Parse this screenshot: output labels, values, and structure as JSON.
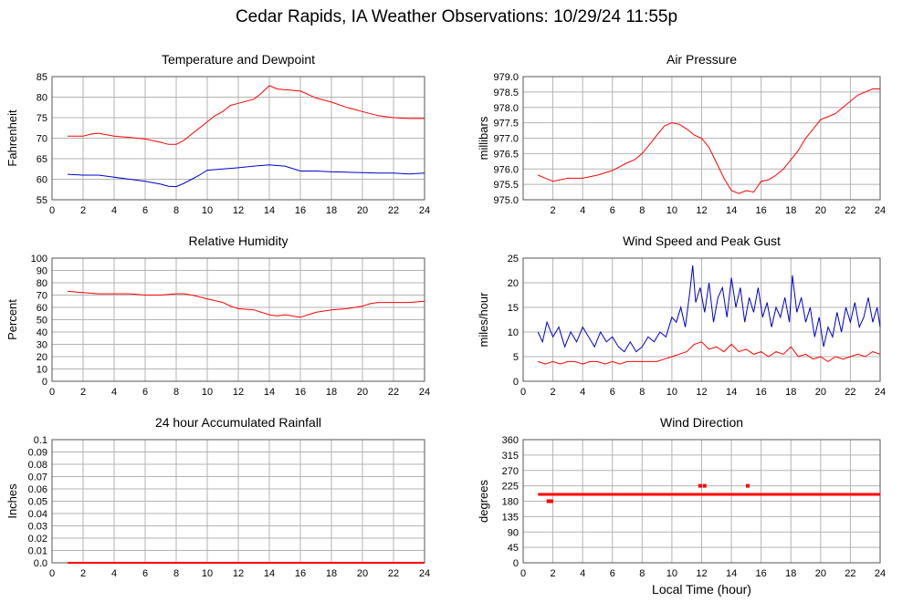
{
  "page": {
    "title": "Cedar Rapids, IA Weather Observations: 10/29/24 11:55p"
  },
  "colors": {
    "primary_series": "#ff0000",
    "secondary_series": "#0000cc",
    "grid": "#b3b3b3",
    "frame": "#555555"
  },
  "chart_data": [
    {
      "id": "temp",
      "type": "line",
      "title": "Temperature and Dewpoint",
      "ylabel": "Fahrenheit",
      "xlabel": "",
      "xlim": [
        0,
        24
      ],
      "ylim": [
        55,
        85
      ],
      "xticks": [
        0,
        2,
        4,
        6,
        8,
        10,
        12,
        14,
        16,
        18,
        20,
        22,
        24
      ],
      "yticks": [
        55,
        60,
        65,
        70,
        75,
        80,
        85
      ],
      "ytick_labels": [
        "55",
        "60",
        "65",
        "70",
        "75",
        "80",
        "85"
      ],
      "grid": true,
      "series": [
        {
          "color": "#ff0000",
          "x": [
            1,
            1.5,
            2,
            2.5,
            3,
            4,
            5,
            6,
            7,
            7.5,
            8,
            8.5,
            9,
            9.5,
            10,
            10.5,
            11,
            11.5,
            12,
            13,
            13.5,
            14,
            14.5,
            15,
            16,
            17,
            18,
            19,
            20,
            21,
            22,
            23,
            24
          ],
          "y": [
            70.5,
            70.5,
            70.5,
            71,
            71.2,
            70.5,
            70.2,
            69.8,
            69,
            68.5,
            68.5,
            69.5,
            71,
            72.5,
            74,
            75.5,
            76.5,
            78,
            78.5,
            79.5,
            81,
            82.8,
            82,
            81.8,
            81.5,
            79.8,
            78.8,
            77.5,
            76.5,
            75.5,
            75,
            74.8,
            74.8
          ]
        },
        {
          "color": "#0000cc",
          "x": [
            1,
            2,
            3,
            4,
            5,
            6,
            7,
            7.5,
            8,
            8.5,
            9,
            9.5,
            10,
            11,
            12,
            13,
            14,
            15,
            16,
            17,
            18,
            19,
            20,
            21,
            22,
            23,
            24
          ],
          "y": [
            61.2,
            61,
            61,
            60.5,
            60,
            59.5,
            58.8,
            58.3,
            58.2,
            59,
            60,
            61,
            62.2,
            62.5,
            62.8,
            63.2,
            63.5,
            63.2,
            62,
            62,
            61.8,
            61.7,
            61.6,
            61.5,
            61.5,
            61.3,
            61.5
          ]
        }
      ]
    },
    {
      "id": "pressure",
      "type": "line",
      "title": "Air Pressure",
      "ylabel": "millibars",
      "xlabel": "",
      "xlim": [
        0,
        24
      ],
      "ylim": [
        975,
        979
      ],
      "xticks": [
        2,
        4,
        6,
        8,
        10,
        12,
        14,
        16,
        18,
        20,
        22,
        24
      ],
      "yticks": [
        975,
        975.5,
        976,
        976.5,
        977,
        977.5,
        978,
        978.5,
        979
      ],
      "ytick_labels": [
        "975.0",
        "975.5",
        "976.0",
        "976.5",
        "977.0",
        "977.5",
        "978.0",
        "978.5",
        "979.0"
      ],
      "grid": true,
      "series": [
        {
          "color": "#ff0000",
          "x": [
            1,
            1.5,
            2,
            3,
            4,
            5,
            6,
            7,
            7.5,
            8,
            8.5,
            9,
            9.5,
            10,
            10.5,
            11,
            11.5,
            12,
            12.5,
            13,
            13.5,
            14,
            14.5,
            15,
            15.5,
            16,
            16.5,
            17,
            17.5,
            18,
            18.5,
            19,
            19.5,
            20,
            20.5,
            21,
            21.5,
            22,
            22.5,
            23,
            23.5,
            24
          ],
          "y": [
            975.8,
            975.7,
            975.6,
            975.7,
            975.7,
            975.8,
            975.95,
            976.2,
            976.3,
            976.5,
            976.8,
            977.1,
            977.4,
            977.5,
            977.45,
            977.3,
            977.1,
            977,
            976.7,
            976.2,
            975.7,
            975.3,
            975.2,
            975.3,
            975.25,
            975.6,
            975.65,
            975.8,
            976,
            976.3,
            976.6,
            977,
            977.3,
            977.6,
            977.7,
            977.8,
            978,
            978.2,
            978.4,
            978.5,
            978.6,
            978.6
          ]
        }
      ]
    },
    {
      "id": "humidity",
      "type": "line",
      "title": "Relative Humidity",
      "ylabel": "Percent",
      "xlabel": "",
      "xlim": [
        0,
        24
      ],
      "ylim": [
        0,
        100
      ],
      "xticks": [
        0,
        2,
        4,
        6,
        8,
        10,
        12,
        14,
        16,
        18,
        20,
        22,
        24
      ],
      "yticks": [
        0,
        10,
        20,
        30,
        40,
        50,
        60,
        70,
        80,
        90,
        100
      ],
      "ytick_labels": [
        "0",
        "10",
        "20",
        "30",
        "40",
        "50",
        "60",
        "70",
        "80",
        "90",
        "100"
      ],
      "grid": true,
      "series": [
        {
          "color": "#ff0000",
          "x": [
            1,
            2,
            3,
            4,
            5,
            6,
            7,
            8,
            8.5,
            9,
            10,
            11,
            11.5,
            12,
            13,
            14,
            14.5,
            15,
            16,
            16.5,
            17,
            18,
            19,
            20,
            20.5,
            21,
            22,
            23,
            24
          ],
          "y": [
            73,
            72,
            71,
            71,
            71,
            70,
            70,
            71,
            71,
            70,
            67,
            64,
            61,
            59,
            58,
            54,
            53,
            54,
            52,
            54,
            56,
            58,
            59,
            61,
            63,
            64,
            64,
            64,
            65
          ]
        }
      ]
    },
    {
      "id": "wind",
      "type": "line",
      "title": "Wind Speed and Peak Gust",
      "ylabel": "miles/hour",
      "xlabel": "",
      "xlim": [
        0,
        24
      ],
      "ylim": [
        0,
        25
      ],
      "xticks": [
        0,
        2,
        4,
        6,
        8,
        10,
        12,
        14,
        16,
        18,
        20,
        22,
        24
      ],
      "yticks": [
        0,
        5,
        10,
        15,
        20,
        25
      ],
      "ytick_labels": [
        "0",
        "5",
        "10",
        "15",
        "20",
        "25"
      ],
      "grid": true,
      "series": [
        {
          "color": "#0000cc",
          "x": [
            1,
            1.3,
            1.6,
            2,
            2.4,
            2.8,
            3.2,
            3.6,
            4,
            4.4,
            4.8,
            5.2,
            5.6,
            6,
            6.4,
            6.8,
            7.2,
            7.6,
            8,
            8.4,
            8.8,
            9.2,
            9.6,
            10,
            10.3,
            10.6,
            10.9,
            11.2,
            11.4,
            11.6,
            11.9,
            12.2,
            12.5,
            12.8,
            13.1,
            13.4,
            13.7,
            14,
            14.3,
            14.6,
            14.9,
            15.2,
            15.5,
            15.8,
            16.1,
            16.4,
            16.7,
            17,
            17.3,
            17.6,
            17.9,
            18.1,
            18.4,
            18.7,
            19,
            19.3,
            19.6,
            19.9,
            20.2,
            20.5,
            20.8,
            21.1,
            21.4,
            21.7,
            22,
            22.3,
            22.6,
            22.9,
            23.2,
            23.5,
            23.8,
            24
          ],
          "y": [
            10,
            8,
            12,
            9,
            11,
            7,
            10,
            8,
            11,
            9,
            7,
            10,
            8,
            9,
            7,
            6,
            8,
            6,
            7,
            9,
            8,
            10,
            9,
            13,
            12,
            15,
            11,
            18,
            23.5,
            16,
            19,
            14,
            20,
            12,
            17,
            19,
            13,
            21,
            15,
            19,
            12,
            17,
            14,
            19,
            13,
            16,
            11,
            15,
            13,
            17,
            12,
            21.5,
            14,
            17,
            12,
            15,
            9,
            13,
            7,
            11,
            9,
            14,
            10,
            15,
            12,
            16,
            11,
            13,
            17,
            12,
            15,
            11
          ]
        },
        {
          "color": "#ff0000",
          "x": [
            1,
            1.5,
            2,
            2.5,
            3,
            3.5,
            4,
            4.5,
            5,
            5.5,
            6,
            6.5,
            7,
            7.5,
            8,
            8.5,
            9,
            9.5,
            10,
            10.5,
            11,
            11.5,
            12,
            12.5,
            13,
            13.5,
            14,
            14.5,
            15,
            15.5,
            16,
            16.5,
            17,
            17.5,
            18,
            18.5,
            19,
            19.5,
            20,
            20.5,
            21,
            21.5,
            22,
            22.5,
            23,
            23.5,
            24
          ],
          "y": [
            4,
            3.5,
            4,
            3.5,
            4,
            4,
            3.5,
            4,
            4,
            3.5,
            4,
            3.5,
            4,
            4,
            4,
            4,
            4,
            4.5,
            5,
            5.5,
            6,
            7.5,
            8,
            6.5,
            7,
            6,
            7.5,
            6,
            6.5,
            5.5,
            6,
            5,
            6,
            5.5,
            7,
            5,
            5.5,
            4.5,
            5,
            4,
            5,
            4.5,
            5,
            5.5,
            5,
            6,
            5.5
          ]
        }
      ]
    },
    {
      "id": "rain",
      "type": "line",
      "title": "24 hour Accumulated Rainfall",
      "ylabel": "Inches",
      "xlabel": "",
      "xlim": [
        0,
        24
      ],
      "ylim": [
        0,
        0.1
      ],
      "xticks": [
        0,
        2,
        4,
        6,
        8,
        10,
        12,
        14,
        16,
        18,
        20,
        22,
        24
      ],
      "yticks": [
        0,
        0.01,
        0.02,
        0.03,
        0.04,
        0.05,
        0.06,
        0.07,
        0.08,
        0.09,
        0.1
      ],
      "ytick_labels": [
        "0.0",
        "0.01",
        "0.02",
        "0.03",
        "0.04",
        "0.05",
        "0.06",
        "0.07",
        "0.08",
        "0.09",
        "0.1"
      ],
      "grid": true,
      "series": [
        {
          "color": "#ff0000",
          "x": [
            1,
            24
          ],
          "y": [
            0,
            0
          ]
        }
      ]
    },
    {
      "id": "direction",
      "type": "scatter",
      "title": "Wind Direction",
      "ylabel": "degrees",
      "xlabel": "Local Time (hour)",
      "xlim": [
        0,
        24
      ],
      "ylim": [
        0,
        360
      ],
      "xticks": [
        0,
        2,
        4,
        6,
        8,
        10,
        12,
        14,
        16,
        18,
        20,
        22,
        24
      ],
      "yticks": [
        0,
        45,
        90,
        135,
        180,
        225,
        270,
        315,
        360
      ],
      "ytick_labels": [
        "0",
        "45",
        "90",
        "135",
        "180",
        "225",
        "270",
        "315",
        "360"
      ],
      "grid": true,
      "baseline": {
        "from": 1,
        "to": 24,
        "value": 200,
        "color": "#ff0000"
      },
      "series": [
        {
          "color": "#ff0000",
          "x": [
            1.7,
            1.9,
            11.9,
            12.2,
            15.1
          ],
          "y": [
            180,
            180,
            225,
            225,
            225
          ]
        }
      ]
    }
  ]
}
